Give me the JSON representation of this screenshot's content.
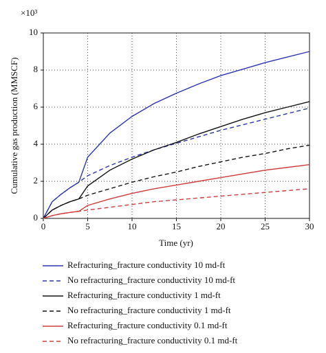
{
  "chart_data": {
    "type": "line",
    "multiplier": "×10³",
    "xlabel": "Time (yr)",
    "ylabel": "Cumulative gas production (MMSCF)",
    "x": [
      0,
      1,
      2,
      3,
      4,
      5,
      7.5,
      10,
      12.5,
      15,
      17.5,
      20,
      22.5,
      25,
      27.5,
      30
    ],
    "xlim": [
      0,
      30
    ],
    "xticks": [
      0,
      5,
      10,
      15,
      20,
      25,
      30
    ],
    "ylim": [
      0,
      10
    ],
    "yticks": [
      0,
      2,
      4,
      6,
      8,
      10
    ],
    "grid": true,
    "series": [
      {
        "name": "Refracturing_fracture conductivity 10 md-ft",
        "color": "#2b35b0",
        "style": "solid",
        "values": [
          0,
          0.9,
          1.3,
          1.65,
          1.95,
          3.3,
          4.6,
          5.5,
          6.2,
          6.75,
          7.25,
          7.7,
          8.05,
          8.4,
          8.7,
          9.0
        ]
      },
      {
        "name": "No refracturing_fracture conductivity 10 md-ft",
        "color": "#2b35b0",
        "style": "dashed",
        "values": [
          0,
          0.9,
          1.3,
          1.65,
          1.95,
          2.3,
          2.85,
          3.3,
          3.7,
          4.05,
          4.4,
          4.75,
          5.05,
          5.35,
          5.65,
          5.95
        ]
      },
      {
        "name": "Refracturing_fracture conductivity 1 md-ft",
        "color": "#111111",
        "style": "solid",
        "values": [
          0,
          0.45,
          0.7,
          0.9,
          1.05,
          1.75,
          2.6,
          3.2,
          3.7,
          4.1,
          4.55,
          4.95,
          5.35,
          5.7,
          6.0,
          6.3
        ]
      },
      {
        "name": "No refracturing_fracture conductivity 1 md-ft",
        "color": "#111111",
        "style": "dashed",
        "values": [
          0,
          0.45,
          0.7,
          0.9,
          1.05,
          1.25,
          1.6,
          1.95,
          2.25,
          2.5,
          2.8,
          3.05,
          3.3,
          3.5,
          3.75,
          3.95
        ]
      },
      {
        "name": "Refracturing_fracture conductivity 0.1 md-ft",
        "color": "#d03a3a",
        "style": "solid",
        "values": [
          0,
          0.15,
          0.25,
          0.32,
          0.38,
          0.7,
          1.05,
          1.35,
          1.6,
          1.8,
          2.0,
          2.2,
          2.4,
          2.6,
          2.75,
          2.9
        ]
      },
      {
        "name": "No refracturing_fracture conductivity 0.1 md-ft",
        "color": "#d03a3a",
        "style": "dashed",
        "values": [
          0,
          0.15,
          0.25,
          0.32,
          0.38,
          0.45,
          0.6,
          0.75,
          0.9,
          1.0,
          1.1,
          1.2,
          1.3,
          1.4,
          1.5,
          1.6
        ]
      }
    ]
  }
}
